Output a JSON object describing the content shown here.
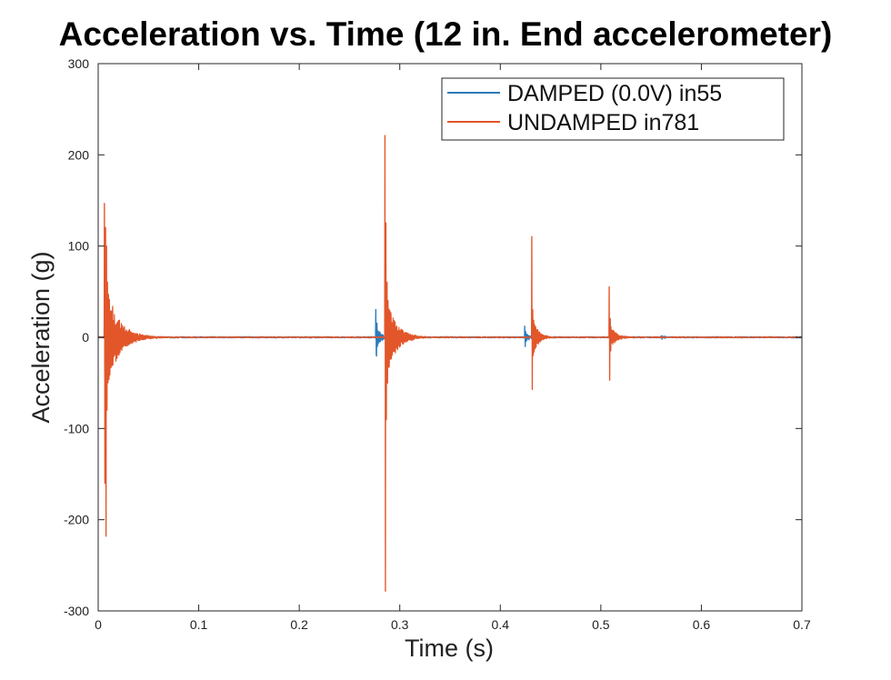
{
  "chart_data": {
    "type": "line",
    "title": "Acceleration vs. Time (12 in. End accelerometer)",
    "xlabel": "Time (s)",
    "ylabel": "Acceleration (g)",
    "xlim": [
      0,
      0.7
    ],
    "ylim": [
      -300,
      300
    ],
    "xticks": [
      0,
      0.1,
      0.2,
      0.3,
      0.4,
      0.5,
      0.6,
      0.7
    ],
    "xtick_labels": [
      "0",
      "0.1",
      "0.2",
      "0.3",
      "0.4",
      "0.5",
      "0.6",
      "0.7"
    ],
    "yticks": [
      -300,
      -200,
      -100,
      0,
      100,
      200,
      300
    ],
    "ytick_labels": [
      "-300",
      "-200",
      "-100",
      "0",
      "100",
      "200",
      "300"
    ],
    "grid": false,
    "legend_position": "top-right",
    "series": [
      {
        "name": "DAMPED (0.0V) in55",
        "color": "#2b7bba",
        "events": [
          {
            "t": 0.006,
            "peaks": [
              55,
              -40,
              30,
              -30,
              20,
              -15
            ],
            "decay": 0.01
          },
          {
            "t": 0.276,
            "peaks": [
              30,
              -20,
              15,
              -10
            ],
            "decay": 0.004
          },
          {
            "t": 0.286,
            "peaks": [
              40,
              -35,
              25,
              -20
            ],
            "decay": 0.006
          },
          {
            "t": 0.424,
            "peaks": [
              12,
              -10,
              6,
              -5
            ],
            "decay": 0.003
          },
          {
            "t": 0.432,
            "peaks": [
              15,
              -12,
              8
            ],
            "decay": 0.004
          },
          {
            "t": 0.509,
            "peaks": [
              20,
              -15,
              8
            ],
            "decay": 0.004
          },
          {
            "t": 0.56,
            "peaks": [
              2,
              -2
            ],
            "decay": 0.003
          }
        ],
        "noise": 0.8
      },
      {
        "name": "UNDAMPED in781",
        "color": "#e2562a",
        "events": [
          {
            "t": 0.006,
            "peaks": [
              147,
              -160,
              120,
              -218,
              100,
              -80,
              60,
              -50
            ],
            "decay": 0.012
          },
          {
            "t": 0.285,
            "peaks": [
              221,
              -278,
              125,
              -90,
              60,
              -50,
              40
            ],
            "decay": 0.009
          },
          {
            "t": 0.431,
            "peaks": [
              110,
              -57,
              30,
              -20
            ],
            "decay": 0.005
          },
          {
            "t": 0.508,
            "peaks": [
              55,
              -47,
              20,
              -15
            ],
            "decay": 0.005
          }
        ],
        "noise": 0.6
      }
    ]
  }
}
